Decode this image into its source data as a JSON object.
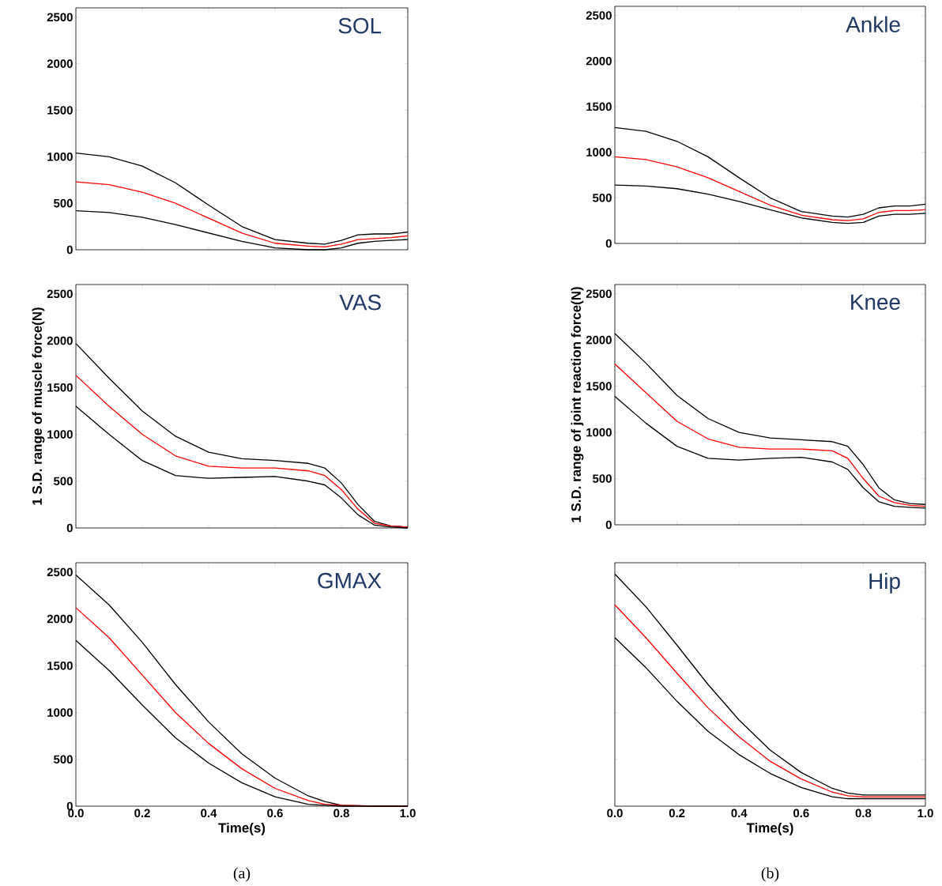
{
  "chart_data": [
    {
      "type": "line",
      "title": "SOL",
      "x": [
        0,
        0.1,
        0.2,
        0.3,
        0.4,
        0.5,
        0.6,
        0.7,
        0.75,
        0.8,
        0.85,
        0.9,
        0.95,
        1.0
      ],
      "xlim": [
        0,
        1
      ],
      "ylim": [
        0,
        2600
      ],
      "xticks": [
        {
          "value": 0,
          "label": null
        },
        {
          "value": 0.2,
          "label": null
        },
        {
          "value": 0.4,
          "label": null
        },
        {
          "value": 0.6,
          "label": null
        },
        {
          "value": 0.8,
          "label": null
        },
        {
          "value": 1,
          "label": null
        }
      ],
      "yticks": [
        0,
        500,
        1000,
        1500,
        2000,
        2500
      ],
      "tick_labels": "y",
      "series": [
        {
          "color": "#000000",
          "values": [
            1040,
            1000,
            900,
            720,
            480,
            250,
            110,
            70,
            60,
            100,
            160,
            170,
            170,
            190
          ]
        },
        {
          "color": "#ff0000",
          "values": [
            730,
            700,
            620,
            500,
            340,
            180,
            70,
            40,
            30,
            60,
            110,
            120,
            130,
            150
          ]
        },
        {
          "color": "#000000",
          "values": [
            420,
            400,
            350,
            270,
            180,
            90,
            20,
            0,
            0,
            20,
            70,
            90,
            100,
            110
          ]
        }
      ]
    },
    {
      "type": "line",
      "title": "VAS",
      "ylabel": "1 S.D. range of muscle force(N)",
      "x": [
        0,
        0.1,
        0.2,
        0.3,
        0.4,
        0.5,
        0.6,
        0.7,
        0.75,
        0.8,
        0.85,
        0.9,
        0.95,
        1.0
      ],
      "xlim": [
        0,
        1
      ],
      "ylim": [
        0,
        2600
      ],
      "xticks": [
        {
          "value": 0,
          "label": null
        },
        {
          "value": 0.2,
          "label": null
        },
        {
          "value": 0.4,
          "label": null
        },
        {
          "value": 0.6,
          "label": null
        },
        {
          "value": 0.8,
          "label": null
        },
        {
          "value": 1,
          "label": null
        }
      ],
      "yticks": [
        0,
        500,
        1000,
        1500,
        2000,
        2500
      ],
      "tick_labels": "y",
      "series": [
        {
          "color": "#000000",
          "values": [
            1970,
            1600,
            1250,
            980,
            810,
            740,
            720,
            690,
            640,
            480,
            250,
            70,
            20,
            10
          ]
        },
        {
          "color": "#ff0000",
          "values": [
            1630,
            1300,
            1000,
            770,
            660,
            640,
            640,
            610,
            560,
            410,
            200,
            50,
            20,
            10
          ]
        },
        {
          "color": "#000000",
          "values": [
            1300,
            1000,
            720,
            560,
            530,
            540,
            550,
            500,
            460,
            320,
            140,
            30,
            10,
            0
          ]
        }
      ]
    },
    {
      "type": "line",
      "title": "GMAX",
      "xlabel": "Time(s)",
      "annotations": [
        "(a)"
      ],
      "x": [
        0,
        0.1,
        0.2,
        0.3,
        0.4,
        0.5,
        0.6,
        0.7,
        0.75,
        0.8,
        0.9,
        1.0
      ],
      "xlim": [
        0,
        1
      ],
      "ylim": [
        0,
        2600
      ],
      "xticks": [
        {
          "value": 0,
          "label": "0.0"
        },
        {
          "value": 0.2,
          "label": "0.2"
        },
        {
          "value": 0.4,
          "label": "0.4"
        },
        {
          "value": 0.6,
          "label": "0.6"
        },
        {
          "value": 0.8,
          "label": "0.8"
        },
        {
          "value": 1,
          "label": "1.0"
        }
      ],
      "yticks": [
        0,
        500,
        1000,
        1500,
        2000,
        2500
      ],
      "series": [
        {
          "color": "#000000",
          "values": [
            2470,
            2150,
            1750,
            1300,
            900,
            560,
            300,
            110,
            50,
            10,
            0,
            0
          ]
        },
        {
          "color": "#ff0000",
          "values": [
            2120,
            1800,
            1400,
            1000,
            670,
            400,
            190,
            60,
            20,
            10,
            0,
            0
          ]
        },
        {
          "color": "#000000",
          "values": [
            1770,
            1450,
            1080,
            730,
            460,
            250,
            100,
            20,
            10,
            0,
            0,
            0
          ]
        }
      ]
    },
    {
      "type": "line",
      "title": "Ankle",
      "x": [
        0,
        0.1,
        0.2,
        0.3,
        0.4,
        0.5,
        0.6,
        0.7,
        0.75,
        0.8,
        0.85,
        0.9,
        0.95,
        1.0
      ],
      "xlim": [
        0,
        1
      ],
      "ylim": [
        0,
        2600
      ],
      "xticks": [
        {
          "value": 0,
          "label": null
        },
        {
          "value": 0.2,
          "label": null
        },
        {
          "value": 0.4,
          "label": null
        },
        {
          "value": 0.6,
          "label": null
        },
        {
          "value": 0.8,
          "label": null
        },
        {
          "value": 1,
          "label": null
        }
      ],
      "yticks": [
        0,
        500,
        1000,
        1500,
        2000,
        2500
      ],
      "tick_labels": "y",
      "series": [
        {
          "color": "#000000",
          "values": [
            1270,
            1230,
            1120,
            950,
            720,
            500,
            350,
            300,
            290,
            320,
            390,
            410,
            410,
            430
          ]
        },
        {
          "color": "#ff0000",
          "values": [
            950,
            920,
            840,
            720,
            570,
            420,
            310,
            260,
            250,
            270,
            340,
            360,
            360,
            370
          ]
        },
        {
          "color": "#000000",
          "values": [
            640,
            630,
            600,
            540,
            460,
            370,
            280,
            230,
            220,
            230,
            300,
            320,
            320,
            330
          ]
        }
      ]
    },
    {
      "type": "line",
      "title": "Knee",
      "ylabel": "1 S.D. range of joint reaction force(N)",
      "x": [
        0,
        0.1,
        0.2,
        0.3,
        0.4,
        0.5,
        0.6,
        0.7,
        0.75,
        0.8,
        0.85,
        0.9,
        0.95,
        1.0
      ],
      "xlim": [
        0,
        1
      ],
      "ylim": [
        0,
        2600
      ],
      "xticks": [
        {
          "value": 0,
          "label": null
        },
        {
          "value": 0.2,
          "label": null
        },
        {
          "value": 0.4,
          "label": null
        },
        {
          "value": 0.6,
          "label": null
        },
        {
          "value": 0.8,
          "label": null
        },
        {
          "value": 1,
          "label": null
        }
      ],
      "yticks": [
        0,
        500,
        1000,
        1500,
        2000,
        2500
      ],
      "tick_labels": "y",
      "series": [
        {
          "color": "#000000",
          "values": [
            2070,
            1750,
            1400,
            1150,
            1000,
            940,
            920,
            900,
            850,
            650,
            400,
            270,
            230,
            220
          ]
        },
        {
          "color": "#ff0000",
          "values": [
            1740,
            1430,
            1120,
            930,
            840,
            820,
            820,
            800,
            720,
            500,
            310,
            240,
            210,
            200
          ]
        },
        {
          "color": "#000000",
          "values": [
            1390,
            1100,
            850,
            720,
            700,
            720,
            730,
            680,
            600,
            400,
            250,
            200,
            190,
            180
          ]
        }
      ]
    },
    {
      "type": "line",
      "title": "Hip",
      "xlabel": "Time(s)",
      "annotations": [
        "(b)"
      ],
      "x": [
        0,
        0.1,
        0.2,
        0.3,
        0.4,
        0.5,
        0.6,
        0.7,
        0.75,
        0.8,
        0.9,
        1.0
      ],
      "xlim": [
        0,
        1
      ],
      "ylim": [
        0,
        2600
      ],
      "xticks": [
        {
          "value": 0,
          "label": "0.0"
        },
        {
          "value": 0.2,
          "label": "0.2"
        },
        {
          "value": 0.4,
          "label": "0.4"
        },
        {
          "value": 0.6,
          "label": "0.6"
        },
        {
          "value": 0.8,
          "label": "0.8"
        },
        {
          "value": 1,
          "label": "1.0"
        }
      ],
      "yticks": [
        {
          "value": 0,
          "label": null
        },
        {
          "value": 500,
          "label": null
        },
        {
          "value": 1000,
          "label": null
        },
        {
          "value": 1500,
          "label": null
        },
        {
          "value": 2000,
          "label": null
        },
        {
          "value": 2500,
          "label": null
        }
      ],
      "tick_labels": "x",
      "series": [
        {
          "color": "#000000",
          "values": [
            2480,
            2130,
            1720,
            1300,
            920,
            600,
            360,
            190,
            140,
            120,
            120,
            120
          ]
        },
        {
          "color": "#ff0000",
          "values": [
            2150,
            1800,
            1420,
            1050,
            740,
            480,
            290,
            150,
            110,
            100,
            100,
            100
          ]
        },
        {
          "color": "#000000",
          "values": [
            1800,
            1480,
            1120,
            800,
            550,
            350,
            200,
            100,
            80,
            80,
            80,
            80
          ]
        }
      ]
    }
  ]
}
